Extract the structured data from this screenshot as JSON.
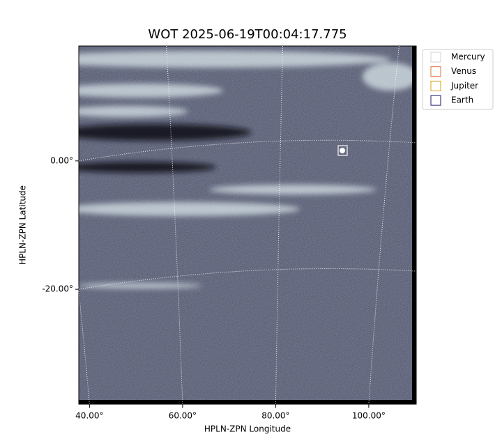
{
  "chart_data": {
    "type": "image",
    "title": "WOT 2025-06-19T00:04:17.775",
    "x_label": "HPLN-ZPN Longitude",
    "y_label": "HPLN-ZPN Latitude",
    "xlim": [
      37.7,
      110.2
    ],
    "ylim": [
      -37.9,
      17.9
    ],
    "xticks": [
      {
        "value": 40,
        "label": "40.00°"
      },
      {
        "value": 60,
        "label": "60.00°"
      },
      {
        "value": 80,
        "label": "80.00°"
      },
      {
        "value": 100,
        "label": "100.00°"
      }
    ],
    "yticks": [
      {
        "value": 0,
        "label": "0.00°"
      },
      {
        "value": -20,
        "label": "-20.00°"
      }
    ],
    "grid": true,
    "series": [
      {
        "name": "Mercury",
        "color": "#d3d3d3"
      },
      {
        "name": "Venus",
        "color": "#e0703a"
      },
      {
        "name": "Jupiter",
        "color": "#d4a017"
      },
      {
        "name": "Earth",
        "color": "#1a1a6e"
      }
    ]
  }
}
